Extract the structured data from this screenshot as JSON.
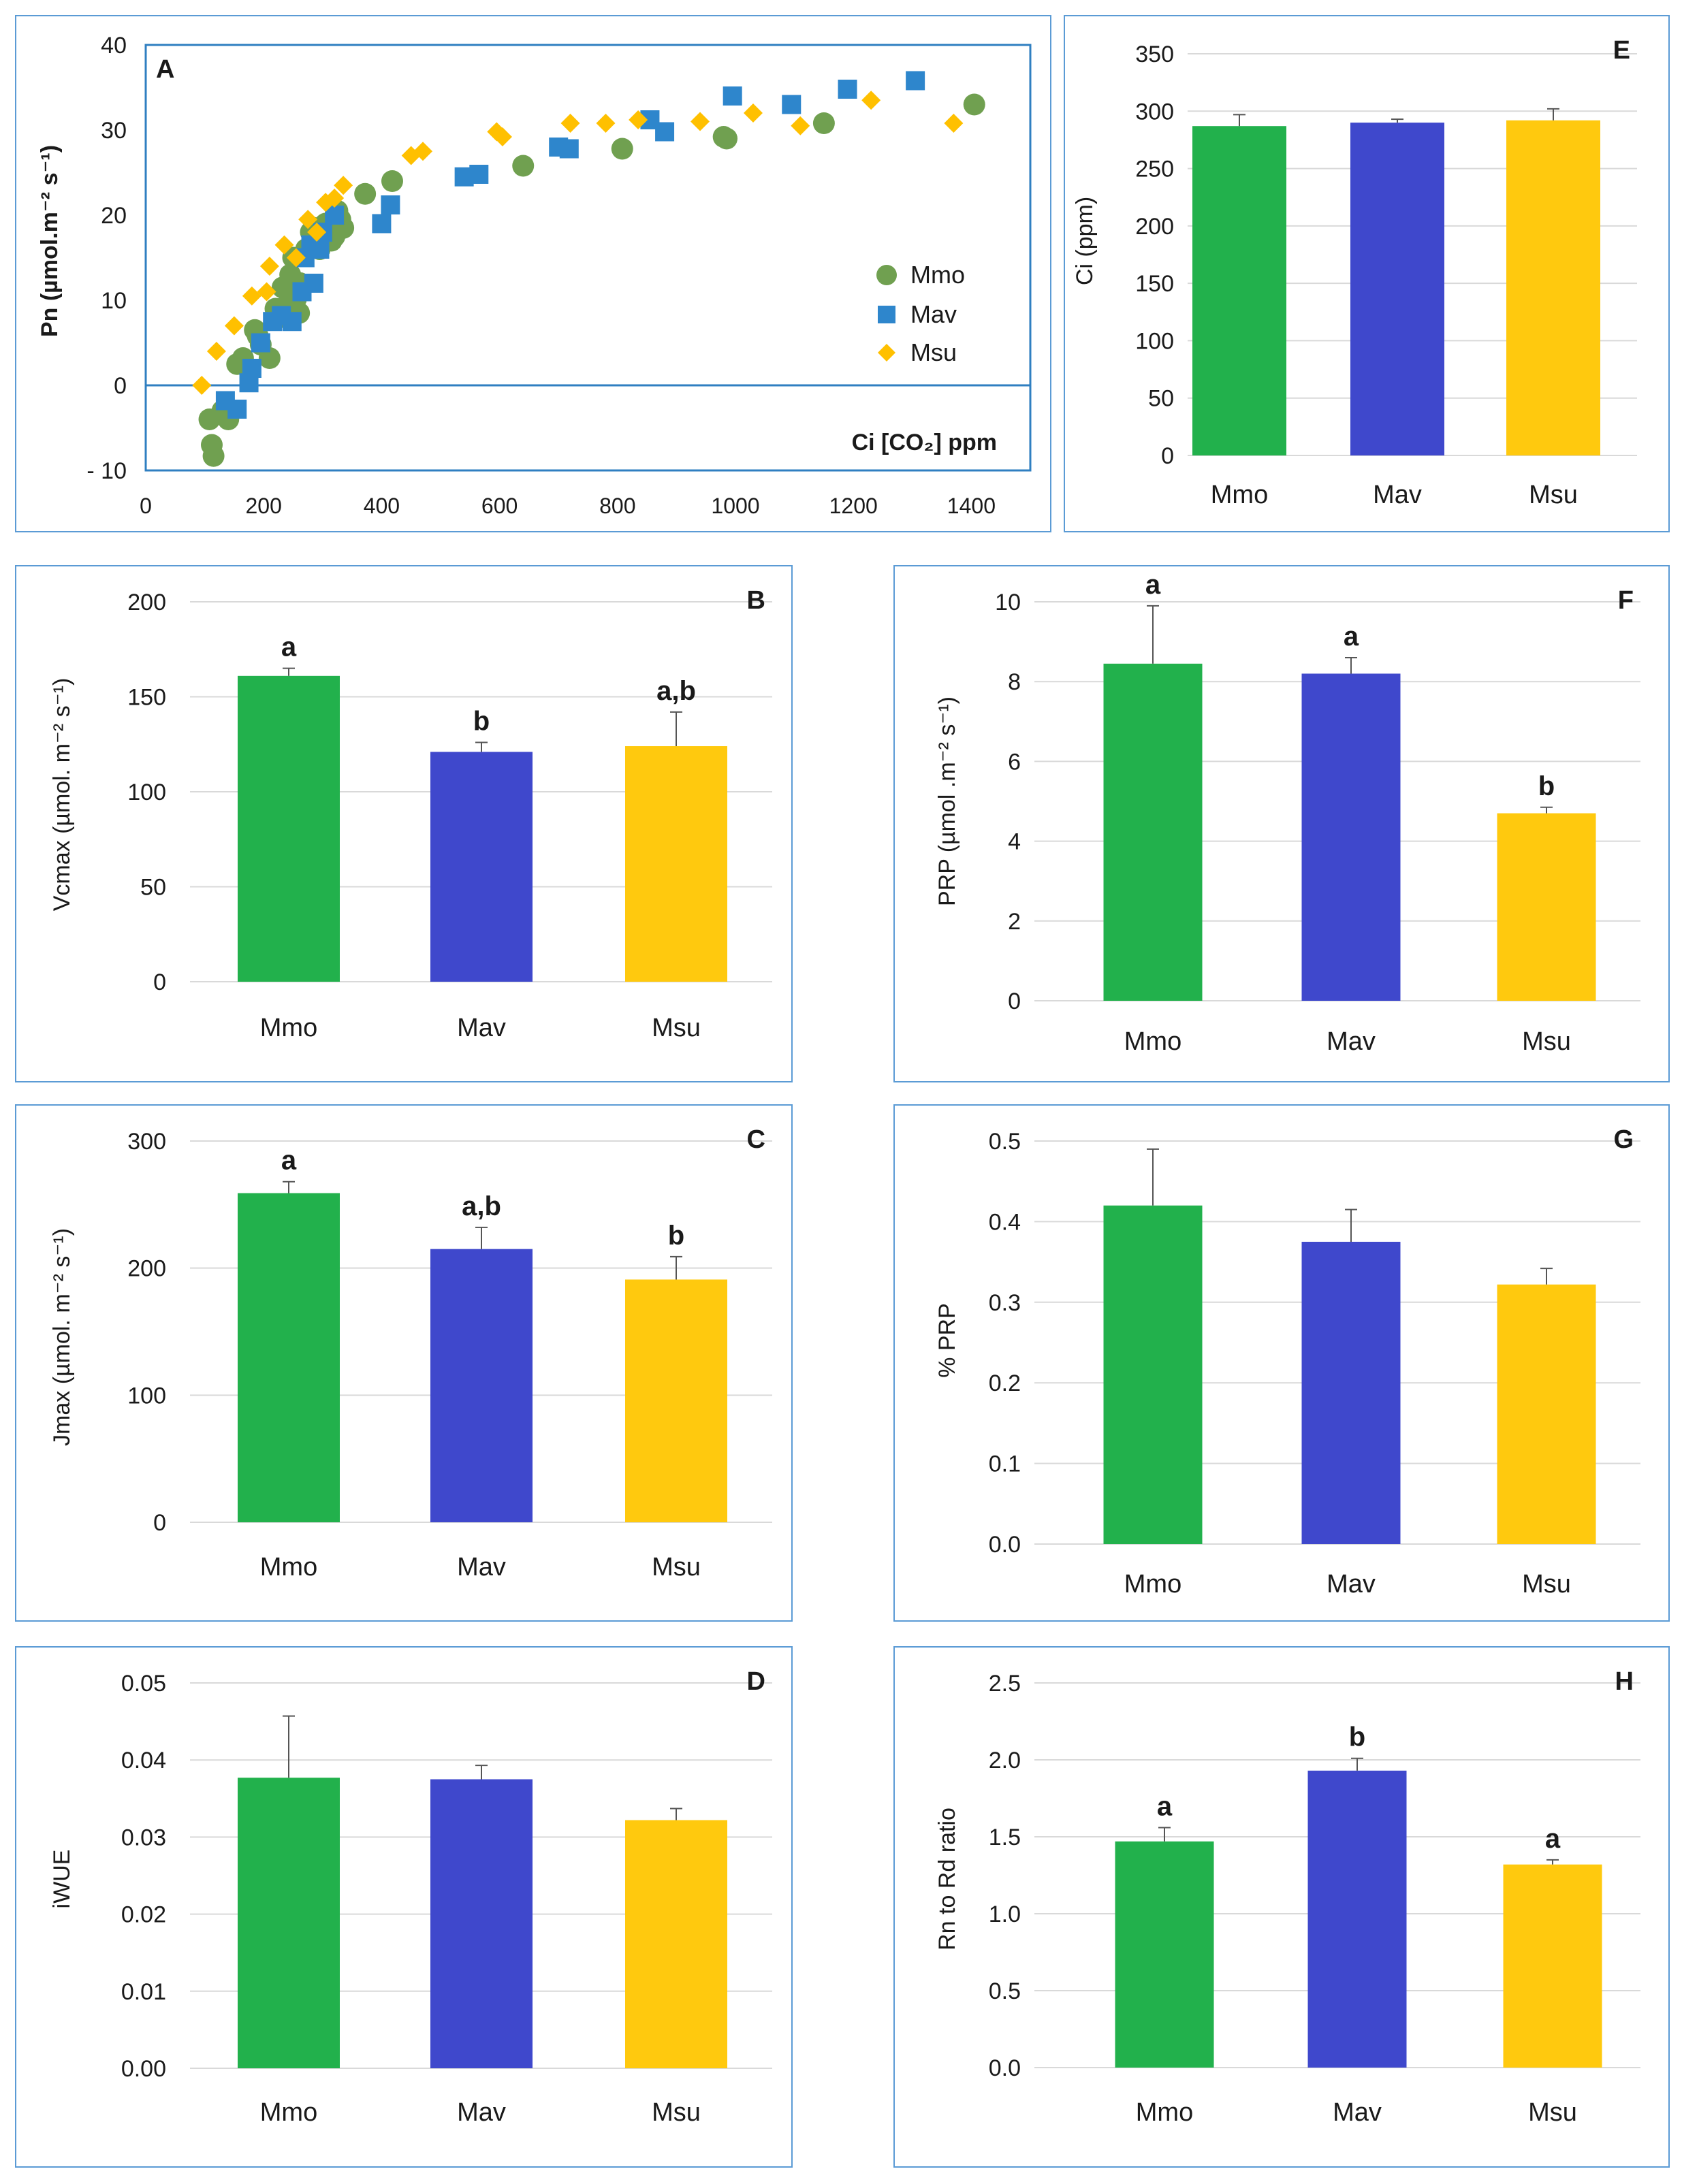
{
  "chart_data": [
    {
      "id": "A",
      "type": "scatter",
      "panel_label": "A",
      "ylabel": "Pn (µmol.m⁻² s⁻¹)",
      "xlabel": "Ci [CO₂] ppm",
      "xlim": [
        0,
        1500
      ],
      "ylim": [
        -10,
        40
      ],
      "xticks": [
        0,
        200,
        400,
        600,
        800,
        1000,
        1200,
        1400
      ],
      "xtick_labels": [
        "0",
        "200",
        "400",
        "600",
        "800",
        "1000",
        "1200",
        "1400"
      ],
      "yticks": [
        -10,
        0,
        10,
        20,
        30,
        40
      ],
      "ytick_labels": [
        "- 10",
        "0",
        "10",
        "20",
        "30",
        "40"
      ],
      "legend_position": "center-right",
      "series": [
        {
          "name": "Mmo",
          "marker": "circle",
          "color": "#70a050",
          "points": [
            [
              108,
              -4
            ],
            [
              112,
              -7
            ],
            [
              115,
              -8.3
            ],
            [
              130,
              -3
            ],
            [
              135,
              -3.5
            ],
            [
              140,
              -4
            ],
            [
              155,
              2.5
            ],
            [
              165,
              3.2
            ],
            [
              185,
              6.5
            ],
            [
              190,
              5.8
            ],
            [
              195,
              4.8
            ],
            [
              210,
              3.2
            ],
            [
              220,
              9
            ],
            [
              228,
              8
            ],
            [
              232,
              11.5
            ],
            [
              240,
              9.5
            ],
            [
              245,
              13
            ],
            [
              250,
              15
            ],
            [
              255,
              10.2
            ],
            [
              260,
              8.5
            ],
            [
              262,
              12
            ],
            [
              272,
              16
            ],
            [
              280,
              18
            ],
            [
              285,
              18.5
            ],
            [
              295,
              16
            ],
            [
              300,
              17
            ],
            [
              305,
              19
            ],
            [
              315,
              17
            ],
            [
              320,
              17.5
            ],
            [
              325,
              20.5
            ],
            [
              330,
              19.5
            ],
            [
              335,
              18.5
            ],
            [
              372,
              22.5
            ],
            [
              418,
              24
            ],
            [
              640,
              25.8
            ],
            [
              808,
              27.8
            ],
            [
              980,
              29.2
            ],
            [
              985,
              29
            ],
            [
              1150,
              30.8
            ],
            [
              1405,
              33
            ]
          ]
        },
        {
          "name": "Mav",
          "marker": "square",
          "color": "#2e86cc",
          "points": [
            [
              135,
              -1.8
            ],
            [
              155,
              -2.8
            ],
            [
              175,
              0.3
            ],
            [
              180,
              2
            ],
            [
              195,
              5
            ],
            [
              215,
              7.5
            ],
            [
              230,
              8.2
            ],
            [
              248,
              7.5
            ],
            [
              265,
              11
            ],
            [
              270,
              15
            ],
            [
              280,
              16.5
            ],
            [
              285,
              12
            ],
            [
              295,
              16
            ],
            [
              300,
              18
            ],
            [
              320,
              20
            ],
            [
              400,
              19
            ],
            [
              415,
              21.2
            ],
            [
              540,
              24.5
            ],
            [
              565,
              24.8
            ],
            [
              700,
              28
            ],
            [
              718,
              27.8
            ],
            [
              855,
              31.2
            ],
            [
              880,
              29.8
            ],
            [
              995,
              34
            ],
            [
              1095,
              33
            ],
            [
              1190,
              34.8
            ],
            [
              1305,
              35.8
            ]
          ]
        },
        {
          "name": "Msu",
          "marker": "diamond",
          "color": "#ffc000",
          "points": [
            [
              95,
              0
            ],
            [
              120,
              4
            ],
            [
              150,
              7
            ],
            [
              180,
              10.5
            ],
            [
              205,
              11
            ],
            [
              210,
              14
            ],
            [
              235,
              16.5
            ],
            [
              255,
              15
            ],
            [
              275,
              19.5
            ],
            [
              290,
              18
            ],
            [
              305,
              21.5
            ],
            [
              320,
              22
            ],
            [
              335,
              23.5
            ],
            [
              450,
              27
            ],
            [
              470,
              27.5
            ],
            [
              595,
              29.8
            ],
            [
              605,
              29.2
            ],
            [
              720,
              30.8
            ],
            [
              780,
              30.8
            ],
            [
              835,
              31.2
            ],
            [
              940,
              31
            ],
            [
              1030,
              32
            ],
            [
              1110,
              30.5
            ],
            [
              1230,
              33.5
            ],
            [
              1370,
              30.8
            ]
          ]
        }
      ]
    },
    {
      "id": "E",
      "type": "bar",
      "panel_label": "E",
      "ylabel": "Ci (ppm)",
      "categories": [
        "Mmo",
        "Mav",
        "Msu"
      ],
      "values": [
        287,
        290,
        292
      ],
      "errors": [
        10,
        3,
        10
      ],
      "letters": [
        "",
        "",
        ""
      ],
      "ylim": [
        0,
        350
      ],
      "yticks": [
        0,
        50,
        100,
        150,
        200,
        250,
        300,
        350
      ],
      "ytick_labels": [
        "0",
        "50",
        "100",
        "150",
        "200",
        "250",
        "300",
        "350"
      ]
    },
    {
      "id": "B",
      "type": "bar",
      "panel_label": "B",
      "ylabel": "Vcmax (µmol. m⁻² s⁻¹)",
      "categories": [
        "Mmo",
        "Mav",
        "Msu"
      ],
      "values": [
        161,
        121,
        124
      ],
      "errors": [
        4,
        5,
        18
      ],
      "letters": [
        "a",
        "b",
        "a,b"
      ],
      "ylim": [
        0,
        200
      ],
      "yticks": [
        0,
        50,
        100,
        150,
        200
      ],
      "ytick_labels": [
        "0",
        "50",
        "100",
        "150",
        "200"
      ]
    },
    {
      "id": "F",
      "type": "bar",
      "panel_label": "F",
      "ylabel": "PRP (µmol .m⁻² s⁻¹)",
      "categories": [
        "Mmo",
        "Mav",
        "Msu"
      ],
      "values": [
        8.45,
        8.2,
        4.7
      ],
      "errors": [
        1.45,
        0.4,
        0.15
      ],
      "letters": [
        "a",
        "a",
        "b"
      ],
      "ylim": [
        0,
        10
      ],
      "yticks": [
        0,
        2,
        4,
        6,
        8,
        10
      ],
      "ytick_labels": [
        "0",
        "2",
        "4",
        "6",
        "8",
        "10"
      ]
    },
    {
      "id": "C",
      "type": "bar",
      "panel_label": "C",
      "ylabel": "Jmax (µmol. m⁻² s⁻¹)",
      "categories": [
        "Mmo",
        "Mav",
        "Msu"
      ],
      "values": [
        259,
        215,
        191
      ],
      "errors": [
        9,
        17,
        18
      ],
      "letters": [
        "a",
        "a,b",
        "b"
      ],
      "ylim": [
        0,
        300
      ],
      "yticks": [
        0,
        100,
        200,
        300
      ],
      "ytick_labels": [
        "0",
        "100",
        "200",
        "300"
      ]
    },
    {
      "id": "G",
      "type": "bar",
      "panel_label": "G",
      "ylabel": "% PRP",
      "categories": [
        "Mmo",
        "Mav",
        "Msu"
      ],
      "values": [
        0.42,
        0.375,
        0.322
      ],
      "errors": [
        0.07,
        0.04,
        0.02
      ],
      "letters": [
        "",
        "",
        ""
      ],
      "ylim": [
        0,
        0.5
      ],
      "yticks": [
        0,
        0.1,
        0.2,
        0.3,
        0.4,
        0.5
      ],
      "ytick_labels": [
        "0.0",
        "0.1",
        "0.2",
        "0.3",
        "0.4",
        "0.5"
      ]
    },
    {
      "id": "D",
      "type": "bar",
      "panel_label": "D",
      "ylabel": "iWUE",
      "categories": [
        "Mmo",
        "Mav",
        "Msu"
      ],
      "values": [
        0.0377,
        0.0375,
        0.0322
      ],
      "errors": [
        0.008,
        0.0018,
        0.0015
      ],
      "letters": [
        "",
        "",
        ""
      ],
      "ylim": [
        0,
        0.05
      ],
      "yticks": [
        0,
        0.01,
        0.02,
        0.03,
        0.04,
        0.05
      ],
      "ytick_labels": [
        "0.00",
        "0.01",
        "0.02",
        "0.03",
        "0.04",
        "0.05"
      ]
    },
    {
      "id": "H",
      "type": "bar",
      "panel_label": "H",
      "ylabel": "Rn to Rd ratio",
      "categories": [
        "Mmo",
        "Mav",
        "Msu"
      ],
      "values": [
        1.47,
        1.93,
        1.32
      ],
      "errors": [
        0.09,
        0.08,
        0.03
      ],
      "letters": [
        "a",
        "b",
        "a"
      ],
      "ylim": [
        0,
        2.5
      ],
      "yticks": [
        0,
        0.5,
        1.0,
        1.5,
        2.0,
        2.5
      ],
      "ytick_labels": [
        "0.0",
        "0.5",
        "1.0",
        "1.5",
        "2.0",
        "2.5"
      ]
    }
  ],
  "colors": {
    "Mmo": "#22b14c",
    "Mav": "#3f48cc",
    "Msu": "#ffc90e",
    "grid": "#d9d9d9",
    "axis": "#2f7fc1",
    "border": "#5b9bd5"
  }
}
